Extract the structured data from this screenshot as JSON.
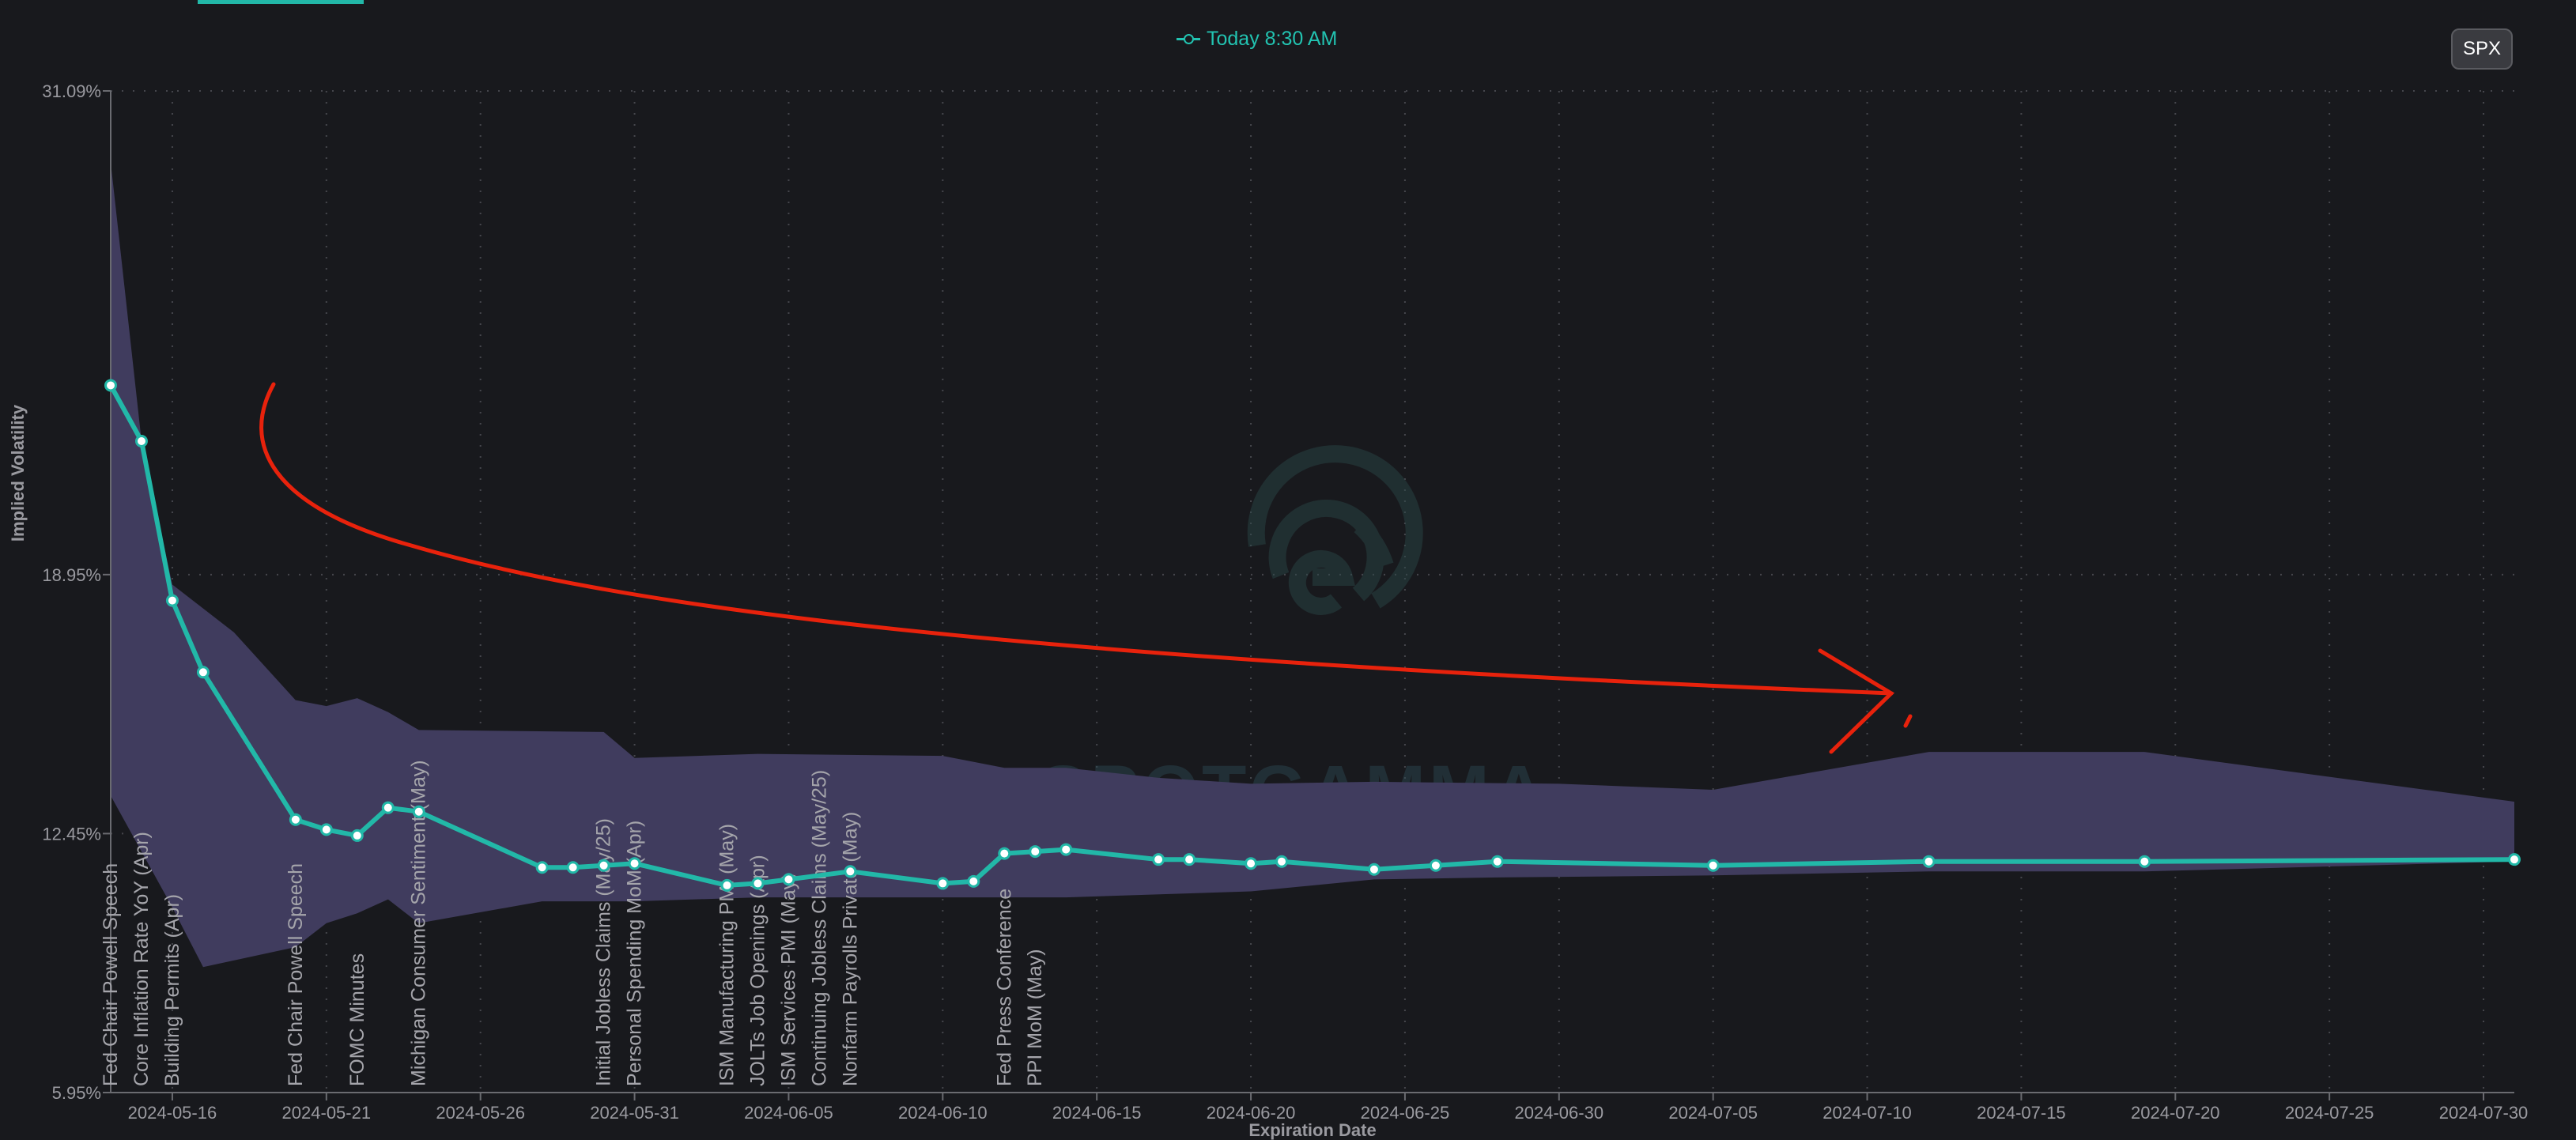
{
  "legend": {
    "label": "Today 8:30 AM"
  },
  "controls": {
    "symbol_button": "SPX"
  },
  "watermark": {
    "text": "SPOTGAMMA"
  },
  "colors": {
    "accent": "#22c3b1",
    "band": "#403c5e",
    "annotation": "#e8220c",
    "background": "#18191d"
  },
  "chart_data": {
    "type": "line",
    "xlabel": "Expiration Date",
    "ylabel": "Implied Volatility",
    "ylim": [
      5.95,
      31.09
    ],
    "xlim": [
      "2024-05-14",
      "2024-07-31"
    ],
    "y_ticks": [
      "31.09%",
      "18.95%",
      "12.45%",
      "5.95%"
    ],
    "y_tick_values": [
      31.09,
      18.95,
      12.45,
      5.95
    ],
    "x_ticks": [
      "2024-05-16",
      "2024-05-21",
      "2024-05-26",
      "2024-05-31",
      "2024-06-05",
      "2024-06-10",
      "2024-06-15",
      "2024-06-20",
      "2024-06-25",
      "2024-06-30",
      "2024-07-05",
      "2024-07-10",
      "2024-07-15",
      "2024-07-20",
      "2024-07-25",
      "2024-07-30"
    ],
    "series": [
      {
        "name": "Today 8:30 AM",
        "points": [
          [
            "2024-05-14",
            23.7
          ],
          [
            "2024-05-15",
            22.3
          ],
          [
            "2024-05-16",
            18.3
          ],
          [
            "2024-05-17",
            16.5
          ],
          [
            "2024-05-20",
            12.8
          ],
          [
            "2024-05-21",
            12.55
          ],
          [
            "2024-05-22",
            12.4
          ],
          [
            "2024-05-23",
            13.1
          ],
          [
            "2024-05-24",
            13.0
          ],
          [
            "2024-05-28",
            11.6
          ],
          [
            "2024-05-29",
            11.6
          ],
          [
            "2024-05-30",
            11.65
          ],
          [
            "2024-05-31",
            11.7
          ],
          [
            "2024-06-03",
            11.15
          ],
          [
            "2024-06-04",
            11.2
          ],
          [
            "2024-06-05",
            11.3
          ],
          [
            "2024-06-07",
            11.5
          ],
          [
            "2024-06-10",
            11.2
          ],
          [
            "2024-06-11",
            11.25
          ],
          [
            "2024-06-12",
            11.95
          ],
          [
            "2024-06-13",
            12.0
          ],
          [
            "2024-06-14",
            12.05
          ],
          [
            "2024-06-17",
            11.8
          ],
          [
            "2024-06-18",
            11.8
          ],
          [
            "2024-06-20",
            11.7
          ],
          [
            "2024-06-21",
            11.75
          ],
          [
            "2024-06-24",
            11.55
          ],
          [
            "2024-06-26",
            11.65
          ],
          [
            "2024-06-28",
            11.75
          ],
          [
            "2024-07-05",
            11.65
          ],
          [
            "2024-07-12",
            11.75
          ],
          [
            "2024-07-19",
            11.75
          ],
          [
            "2024-07-31",
            11.8
          ]
        ]
      }
    ],
    "range_band": {
      "upper": [
        [
          "2024-05-14",
          29.3
        ],
        [
          "2024-05-15",
          22.3
        ],
        [
          "2024-05-16",
          18.7
        ],
        [
          "2024-05-18",
          17.5
        ],
        [
          "2024-05-20",
          15.8
        ],
        [
          "2024-05-21",
          15.65
        ],
        [
          "2024-05-22",
          15.85
        ],
        [
          "2024-05-23",
          15.5
        ],
        [
          "2024-05-24",
          15.05
        ],
        [
          "2024-05-30",
          15.0
        ],
        [
          "2024-05-31",
          14.35
        ],
        [
          "2024-06-04",
          14.45
        ],
        [
          "2024-06-10",
          14.4
        ],
        [
          "2024-06-12",
          14.1
        ],
        [
          "2024-06-14",
          14.1
        ],
        [
          "2024-06-17",
          13.85
        ],
        [
          "2024-06-20",
          13.7
        ],
        [
          "2024-06-24",
          13.75
        ],
        [
          "2024-06-30",
          13.7
        ],
        [
          "2024-07-05",
          13.55
        ],
        [
          "2024-07-12",
          14.5
        ],
        [
          "2024-07-19",
          14.5
        ],
        [
          "2024-07-31",
          13.25
        ]
      ],
      "lower": [
        [
          "2024-05-14",
          13.4
        ],
        [
          "2024-05-16",
          10.6
        ],
        [
          "2024-05-17",
          9.1
        ],
        [
          "2024-05-20",
          9.6
        ],
        [
          "2024-05-21",
          10.2
        ],
        [
          "2024-05-22",
          10.45
        ],
        [
          "2024-05-23",
          10.8
        ],
        [
          "2024-05-24",
          10.2
        ],
        [
          "2024-05-28",
          10.75
        ],
        [
          "2024-05-31",
          10.75
        ],
        [
          "2024-06-04",
          10.85
        ],
        [
          "2024-06-10",
          10.85
        ],
        [
          "2024-06-14",
          10.85
        ],
        [
          "2024-06-20",
          11.0
        ],
        [
          "2024-06-24",
          11.3
        ],
        [
          "2024-06-28",
          11.35
        ],
        [
          "2024-07-05",
          11.4
        ],
        [
          "2024-07-12",
          11.5
        ],
        [
          "2024-07-19",
          11.5
        ],
        [
          "2024-07-31",
          11.75
        ]
      ]
    },
    "events": [
      {
        "date": "2024-05-14",
        "label": "Fed Chair Powell Speech"
      },
      {
        "date": "2024-05-15",
        "label": "Core Inflation Rate YoY (Apr)"
      },
      {
        "date": "2024-05-16",
        "label": "Building Permits (Apr)"
      },
      {
        "date": "2024-05-20",
        "label": "Fed Chair Powell Speech"
      },
      {
        "date": "2024-05-22",
        "label": "FOMC Minutes"
      },
      {
        "date": "2024-05-24",
        "label": "Michigan Consumer Sentiment (May)"
      },
      {
        "date": "2024-05-30",
        "label": "Initial Jobless Claims (May/25)"
      },
      {
        "date": "2024-05-31",
        "label": "Personal Spending MoM (Apr)"
      },
      {
        "date": "2024-06-03",
        "label": "ISM Manufacturing PMI (May)"
      },
      {
        "date": "2024-06-04",
        "label": "JOLTs Job Openings (Apr)"
      },
      {
        "date": "2024-06-05",
        "label": "ISM Services PMI (May)"
      },
      {
        "date": "2024-06-06",
        "label": "Continuing Jobless Claims (May/25)"
      },
      {
        "date": "2024-06-07",
        "label": "Nonfarm Payrolls Private (May)"
      },
      {
        "date": "2024-06-12",
        "label": "Fed Press Conference"
      },
      {
        "date": "2024-06-13",
        "label": "PPI MoM (May)"
      }
    ],
    "grid": true
  }
}
